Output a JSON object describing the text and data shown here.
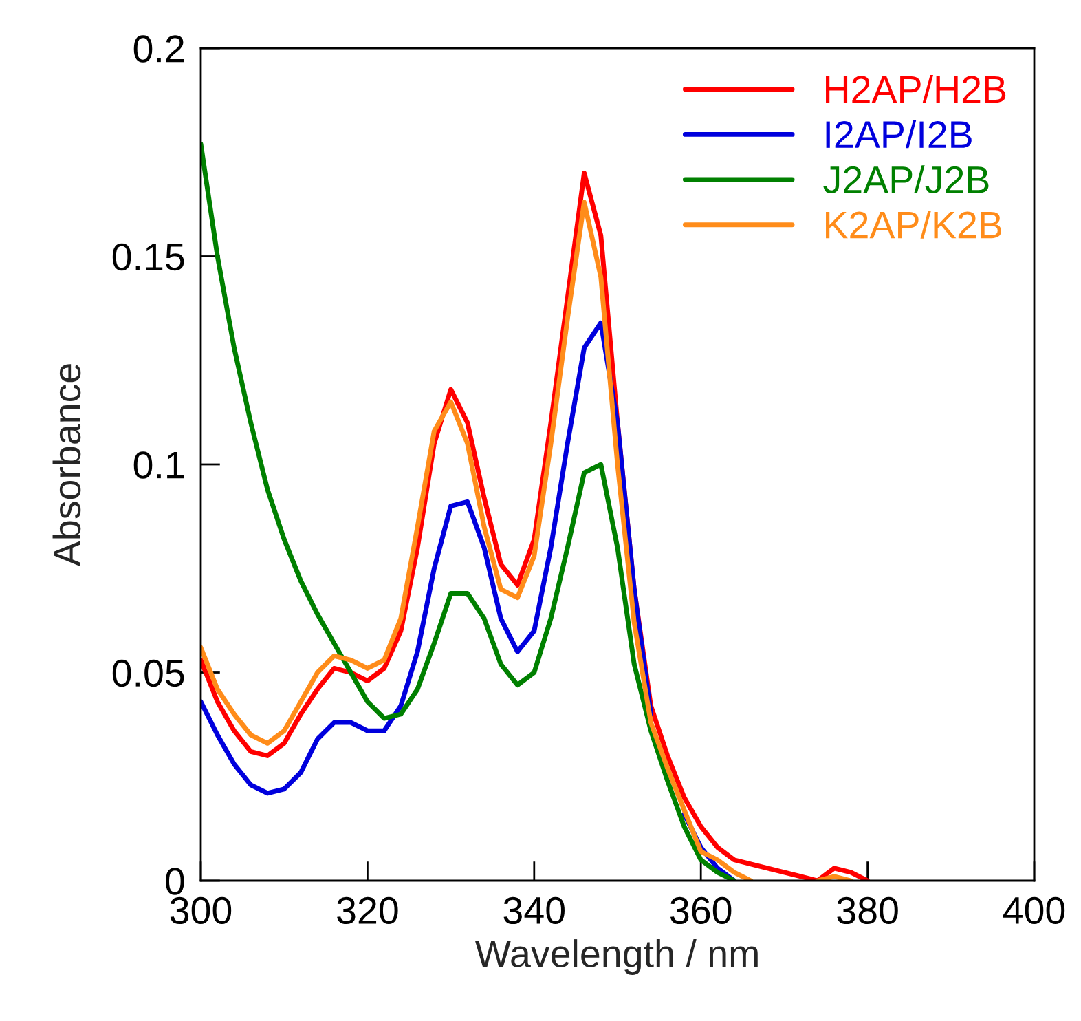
{
  "chart_data": {
    "type": "line",
    "xlabel": "Wavelength / nm",
    "ylabel": "Absorbance",
    "xlim": [
      300,
      400
    ],
    "xticks": [
      300,
      320,
      340,
      360,
      380,
      400
    ],
    "ylim": [
      0,
      0.2
    ],
    "yticks": [
      0,
      0.05,
      0.1,
      0.15,
      0.2
    ],
    "grid": false,
    "legend": "top right",
    "marker": "none",
    "line_style": "solid",
    "x": [
      300,
      302,
      304,
      306,
      308,
      310,
      312,
      314,
      316,
      318,
      320,
      322,
      324,
      326,
      328,
      330,
      332,
      334,
      336,
      338,
      340,
      342,
      344,
      346,
      348,
      350,
      352,
      354,
      356,
      358,
      360,
      362,
      364,
      366,
      368,
      370,
      372,
      374,
      376,
      378,
      380
    ],
    "series": [
      {
        "name": "H2AP/H2B",
        "color": "#ff0000",
        "values": [
          0.053,
          0.043,
          0.036,
          0.031,
          0.03,
          0.033,
          0.04,
          0.046,
          0.051,
          0.05,
          0.048,
          0.051,
          0.06,
          0.08,
          0.105,
          0.118,
          0.11,
          0.092,
          0.076,
          0.071,
          0.082,
          0.11,
          0.14,
          0.17,
          0.155,
          0.11,
          0.07,
          0.042,
          0.03,
          0.02,
          0.013,
          0.008,
          0.005,
          0.004,
          0.003,
          0.002,
          0.001,
          0.0,
          0.003,
          0.002,
          0.0
        ]
      },
      {
        "name": "I2AP/I2B",
        "color": "#0000dd",
        "values": [
          0.043,
          0.035,
          0.028,
          0.023,
          0.021,
          0.022,
          0.026,
          0.034,
          0.038,
          0.038,
          0.036,
          0.036,
          0.042,
          0.055,
          0.075,
          0.09,
          0.091,
          0.08,
          0.063,
          0.055,
          0.06,
          0.08,
          0.105,
          0.128,
          0.134,
          0.11,
          0.07,
          0.04,
          null,
          0.016,
          0.008,
          0.003,
          0.0,
          null,
          null,
          null,
          null,
          null,
          null,
          null,
          null
        ]
      },
      {
        "name": "J2AP/J2B",
        "color": "#008000",
        "values": [
          0.177,
          0.15,
          0.128,
          0.11,
          0.094,
          0.082,
          0.072,
          0.064,
          0.057,
          0.05,
          0.043,
          0.039,
          0.04,
          0.046,
          0.057,
          0.069,
          0.069,
          0.063,
          0.052,
          0.047,
          0.05,
          0.063,
          0.08,
          0.098,
          0.1,
          0.08,
          0.052,
          0.036,
          0.024,
          0.013,
          0.005,
          0.002,
          0.0,
          null,
          null,
          null,
          null,
          null,
          null,
          null,
          null
        ]
      },
      {
        "name": "K2AP/K2B",
        "color": "#ff8c1a",
        "values": [
          0.056,
          0.046,
          0.04,
          0.035,
          0.033,
          0.036,
          0.043,
          0.05,
          0.054,
          0.053,
          0.051,
          0.053,
          0.063,
          0.085,
          0.108,
          0.115,
          0.105,
          0.085,
          0.07,
          0.068,
          0.078,
          0.105,
          0.135,
          0.163,
          0.145,
          0.1,
          0.062,
          0.038,
          0.027,
          0.017,
          0.007,
          0.005,
          0.002,
          0.0,
          null,
          null,
          null,
          0.0,
          0.001,
          0.0,
          null
        ]
      }
    ]
  }
}
